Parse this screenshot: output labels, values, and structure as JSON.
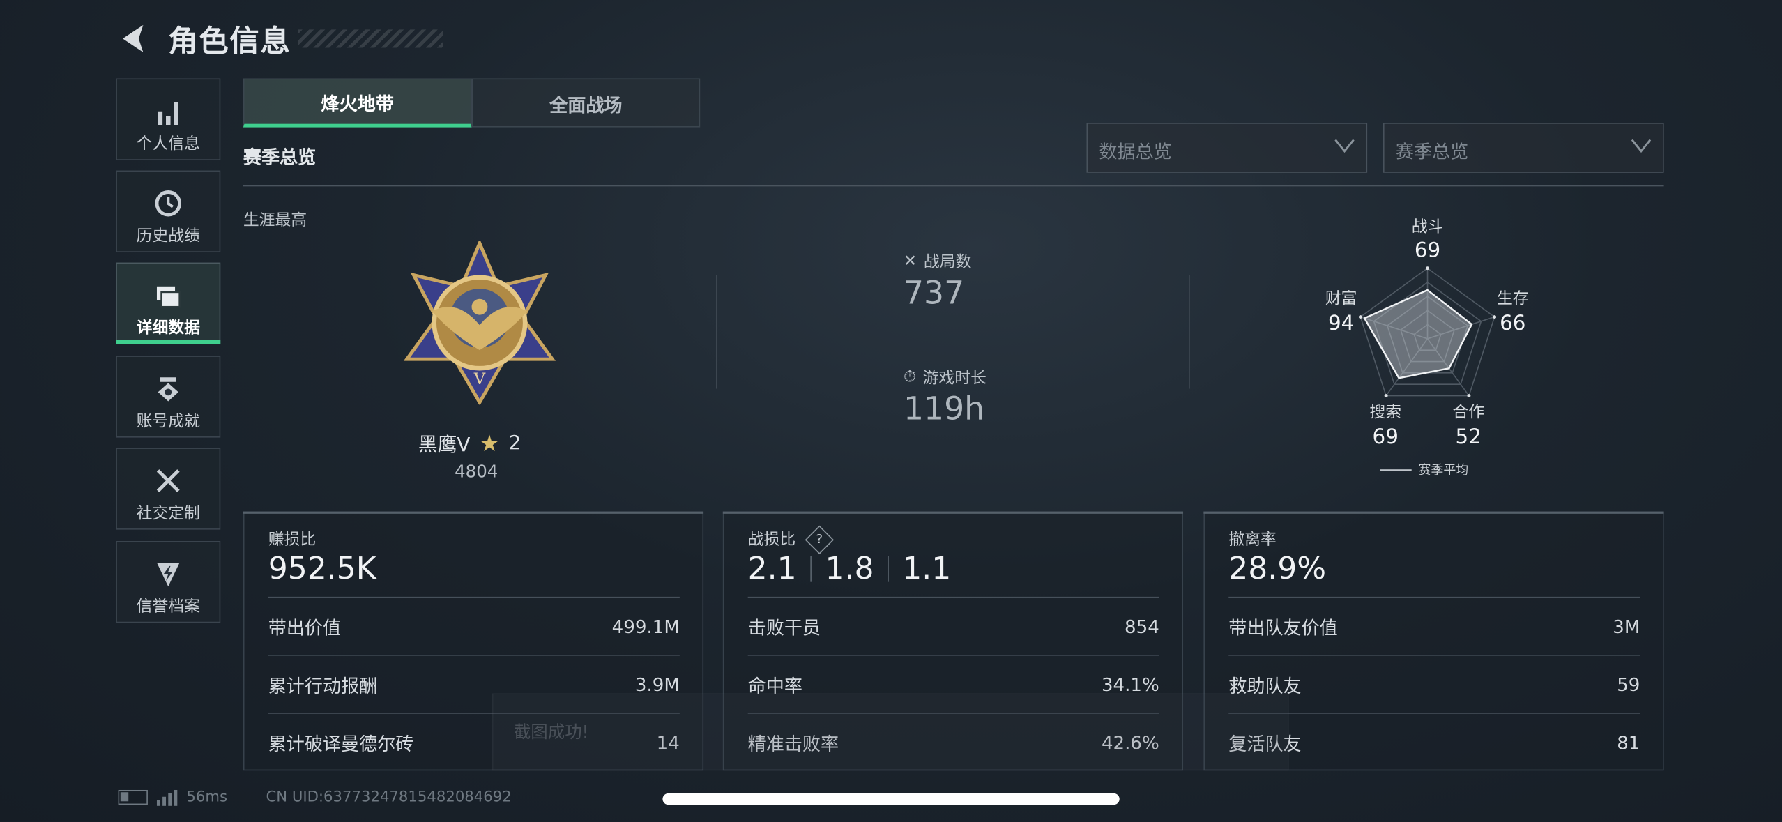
{
  "header": {
    "title": "角色信息",
    "back_icon": "back-chevron-icon"
  },
  "sidebar": {
    "items": [
      {
        "label": "个人信息",
        "icon": "bar-chart-icon",
        "active": false
      },
      {
        "label": "历史战绩",
        "icon": "history-clock-icon",
        "active": false
      },
      {
        "label": "详细数据",
        "icon": "folders-icon",
        "active": true
      },
      {
        "label": "账号成就",
        "icon": "medal-icon",
        "active": false
      },
      {
        "label": "社交定制",
        "icon": "tools-icon",
        "active": false
      },
      {
        "label": "信誉档案",
        "icon": "shield-bolt-icon",
        "active": false
      }
    ]
  },
  "tabs": [
    {
      "label": "烽火地带",
      "active": true
    },
    {
      "label": "全面战场",
      "active": false
    }
  ],
  "section_title": "赛季总览",
  "filters": {
    "data_select": "数据总览",
    "season_select": "赛季总览"
  },
  "rank": {
    "label": "生涯最高",
    "name": "黑鹰V",
    "stars": "2",
    "score": "4804"
  },
  "summary": {
    "matches_label": "战局数",
    "matches": "737",
    "time_label": "游戏时长",
    "time": "119h"
  },
  "radar": {
    "axes": [
      {
        "label": "战斗",
        "value": 69
      },
      {
        "label": "生存",
        "value": 66
      },
      {
        "label": "合作",
        "value": 52
      },
      {
        "label": "搜索",
        "value": 69
      },
      {
        "label": "财富",
        "value": 94
      }
    ],
    "values_text": [
      "69",
      "66",
      "52",
      "69",
      "94"
    ],
    "legend": "赛季平均",
    "max": 100
  },
  "cards": [
    {
      "title": "赚损比",
      "value": "952.5K",
      "rows": [
        [
          "带出价值",
          "499.1M"
        ],
        [
          "累计行动报酬",
          "3.9M"
        ],
        [
          "累计破译曼德尔砖",
          "14"
        ]
      ]
    },
    {
      "title": "战损比",
      "help": "?",
      "values": [
        "2.1",
        "1.8",
        "1.1"
      ],
      "rows": [
        [
          "击败干员",
          "854"
        ],
        [
          "命中率",
          "34.1%"
        ],
        [
          "精准击败率",
          "42.6%"
        ]
      ]
    },
    {
      "title": "撤离率",
      "value": "28.9%",
      "rows": [
        [
          "带出队友价值",
          "3M"
        ],
        [
          "救助队友",
          "59"
        ],
        [
          "复活队友",
          "81"
        ]
      ]
    }
  ],
  "toast": "截图成功!",
  "footer": {
    "ping": "56ms",
    "uid": "CN UID:637732478154820846​92"
  },
  "colors": {
    "accent": "#3fcf8e",
    "background": "#1a222b"
  }
}
